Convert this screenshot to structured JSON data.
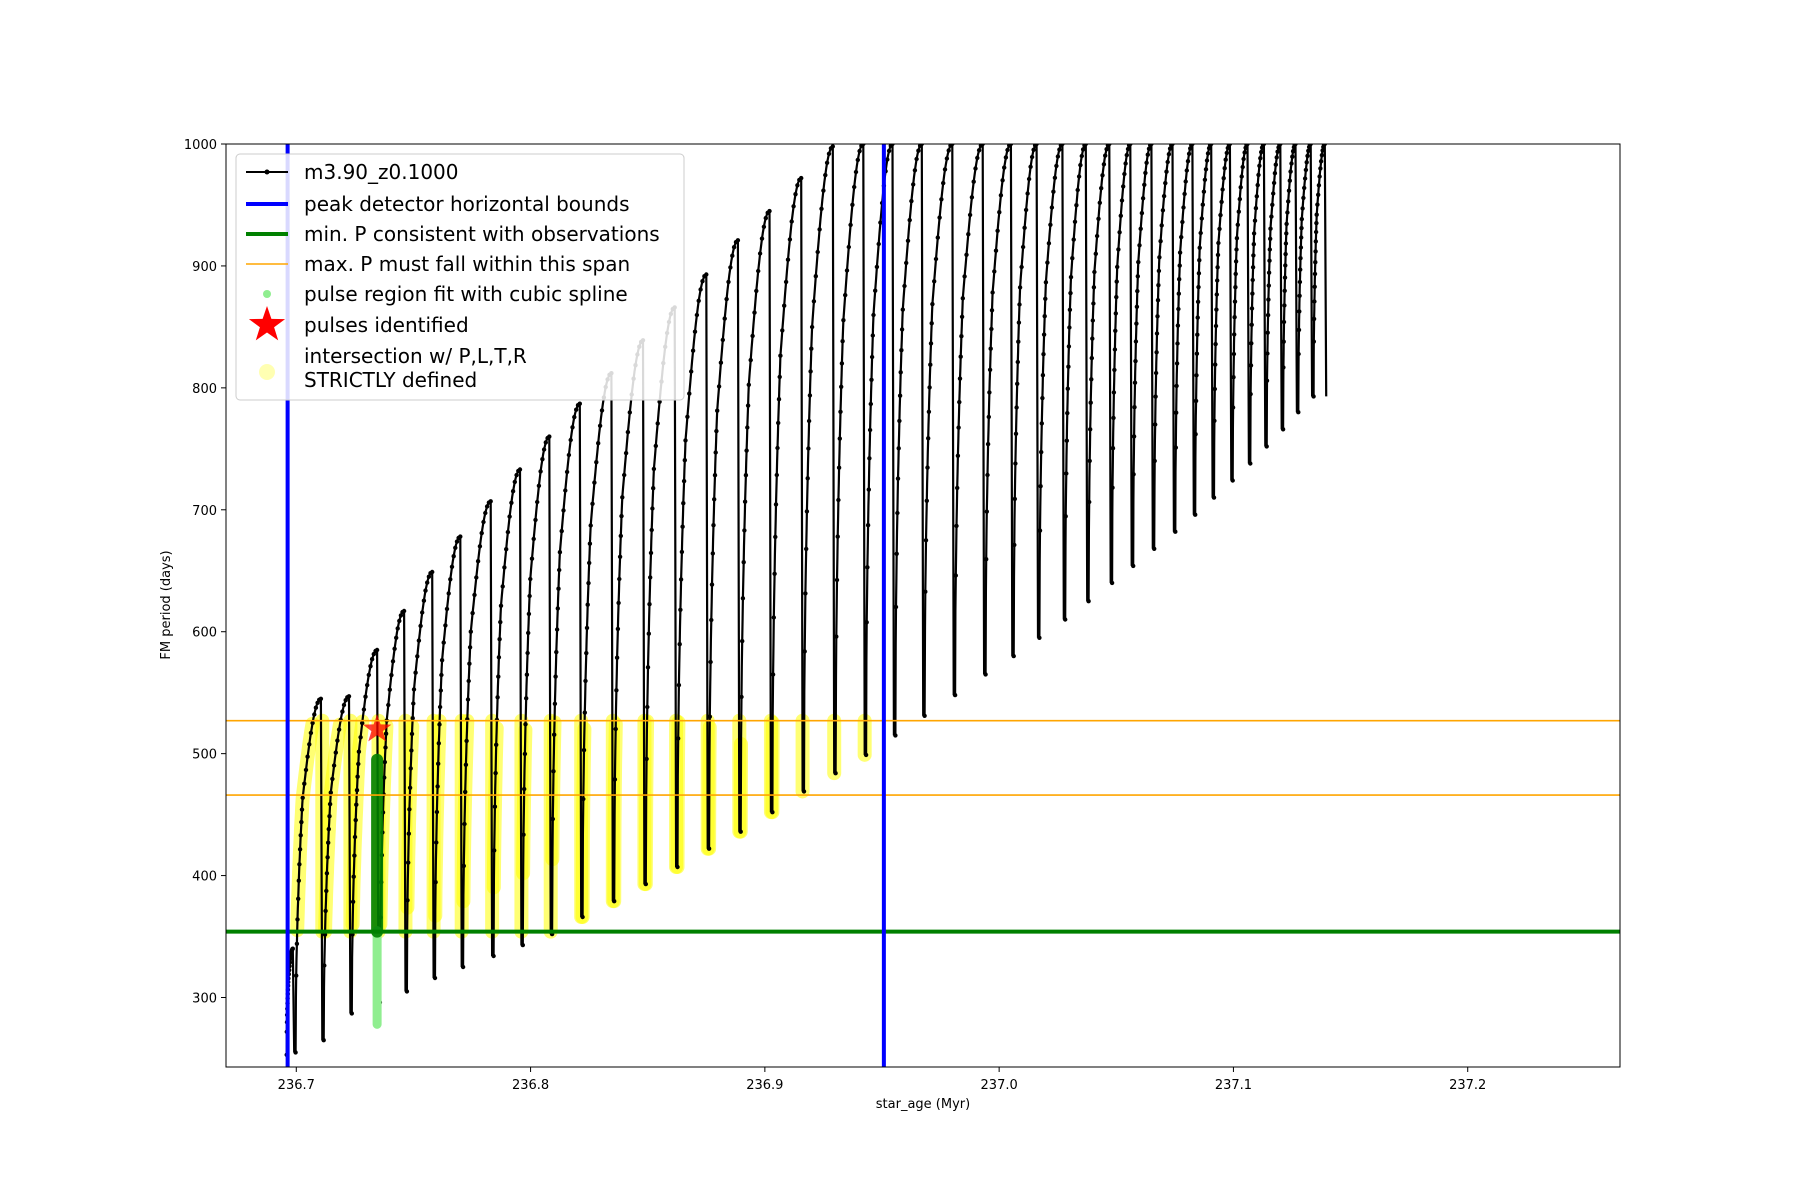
{
  "chart_data": {
    "type": "line",
    "title": "",
    "xlabel": "star_age (Myr)",
    "ylabel": "FM period (days)",
    "xlim": [
      236.67,
      237.265
    ],
    "ylim": [
      243,
      1000
    ],
    "xticks": [
      236.7,
      236.8,
      236.9,
      237.0,
      237.1,
      237.2
    ],
    "yticks": [
      300,
      400,
      500,
      600,
      700,
      800,
      900,
      1000
    ],
    "grid": false,
    "legend_position": "top-left",
    "colors": {
      "track": "#000000",
      "bounds": "#0000ff",
      "min_period": "#008000",
      "max_span": "#ffa500",
      "spline": "#90ee90",
      "pulses": "#ff0000",
      "intersection": "#ffff00"
    },
    "series": [
      {
        "name": "m3.90_z0.1000",
        "kind": "track",
        "pulses": [
          {
            "x": 236.6985,
            "top": 340,
            "min": 253
          },
          {
            "x": 236.7105,
            "top": 545,
            "min": 255
          },
          {
            "x": 236.7225,
            "top": 547,
            "min": 265
          },
          {
            "x": 236.7345,
            "top": 585,
            "min": 287
          },
          {
            "x": 236.746,
            "top": 617,
            "min": 296
          },
          {
            "x": 236.758,
            "top": 649,
            "min": 305
          },
          {
            "x": 236.77,
            "top": 678,
            "min": 316
          },
          {
            "x": 236.783,
            "top": 707,
            "min": 325
          },
          {
            "x": 236.7955,
            "top": 733,
            "min": 334
          },
          {
            "x": 236.808,
            "top": 760,
            "min": 343
          },
          {
            "x": 236.821,
            "top": 787,
            "min": 352
          },
          {
            "x": 236.8345,
            "top": 812,
            "min": 366
          },
          {
            "x": 236.848,
            "top": 839,
            "min": 379
          },
          {
            "x": 236.8615,
            "top": 866,
            "min": 393
          },
          {
            "x": 236.875,
            "top": 893,
            "min": 407
          },
          {
            "x": 236.8885,
            "top": 921,
            "min": 422
          },
          {
            "x": 236.902,
            "top": 945,
            "min": 436
          },
          {
            "x": 236.9155,
            "top": 972,
            "min": 452
          },
          {
            "x": 236.929,
            "top": 998,
            "min": 469
          },
          {
            "x": 236.942,
            "top": 1000,
            "min": 484
          },
          {
            "x": 236.9545,
            "top": 1000,
            "min": 499
          },
          {
            "x": 236.967,
            "top": 1000,
            "min": 515
          },
          {
            "x": 236.98,
            "top": 1000,
            "min": 531
          },
          {
            "x": 236.993,
            "top": 1000,
            "min": 548
          },
          {
            "x": 237.005,
            "top": 1000,
            "min": 565
          },
          {
            "x": 237.016,
            "top": 1000,
            "min": 580
          },
          {
            "x": 237.027,
            "top": 1000,
            "min": 595
          },
          {
            "x": 237.037,
            "top": 1000,
            "min": 610
          },
          {
            "x": 237.047,
            "top": 1000,
            "min": 625
          },
          {
            "x": 237.056,
            "top": 1000,
            "min": 640
          },
          {
            "x": 237.065,
            "top": 1000,
            "min": 654
          },
          {
            "x": 237.074,
            "top": 1000,
            "min": 668
          },
          {
            "x": 237.0825,
            "top": 1000,
            "min": 682
          },
          {
            "x": 237.0905,
            "top": 1000,
            "min": 696
          },
          {
            "x": 237.0985,
            "top": 1000,
            "min": 710
          },
          {
            "x": 237.106,
            "top": 1000,
            "min": 724
          },
          {
            "x": 237.113,
            "top": 1000,
            "min": 738
          },
          {
            "x": 237.12,
            "top": 1000,
            "min": 752
          },
          {
            "x": 237.1265,
            "top": 1000,
            "min": 766
          },
          {
            "x": 237.133,
            "top": 1000,
            "min": 780
          },
          {
            "x": 237.139,
            "top": 1000,
            "min": 793
          }
        ]
      },
      {
        "name": "peak detector horizontal bounds",
        "kind": "vline",
        "x": [
          236.6963,
          236.9508
        ]
      },
      {
        "name": "min. P consistent with observations",
        "kind": "hline",
        "y": [
          354
        ]
      },
      {
        "name": "max. P must fall within this span",
        "kind": "hline",
        "y": [
          466,
          527
        ]
      },
      {
        "name": "pulse region fit with cubic spline",
        "kind": "scatter",
        "x": 236.7345,
        "y_range": [
          278,
          355
        ]
      },
      {
        "name": "pulses identified",
        "kind": "marker",
        "points": [
          {
            "x": 236.7345,
            "y": 520
          }
        ]
      },
      {
        "name": "intersection w/ P,L,T,R\nSTRICTLY defined",
        "kind": "highlight",
        "y_range": [
          354,
          527
        ]
      }
    ]
  }
}
